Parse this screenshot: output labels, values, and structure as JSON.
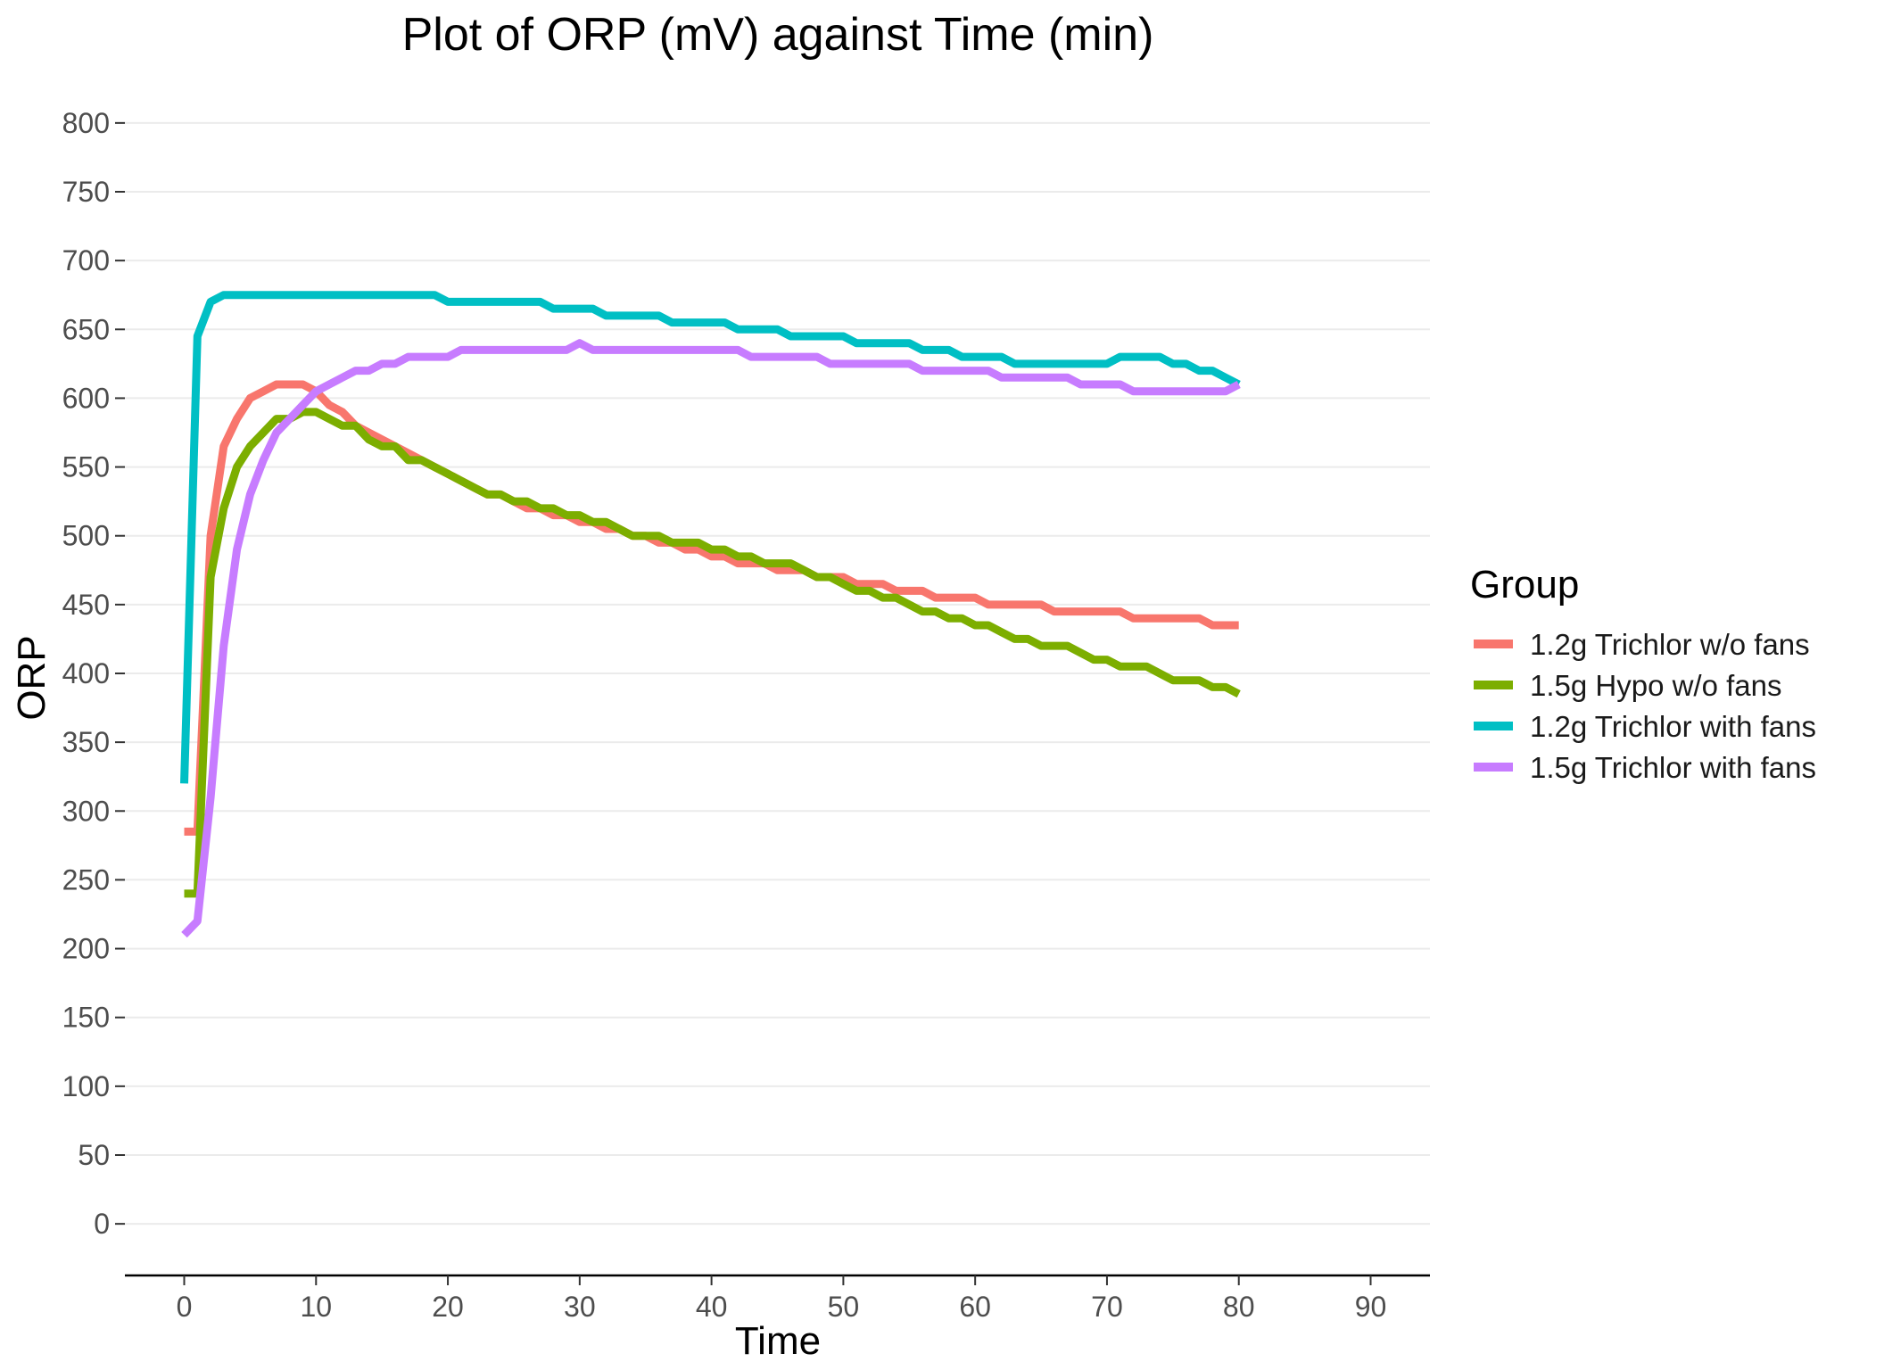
{
  "chart_data": {
    "type": "line",
    "title": "Plot of ORP (mV) against Time (min)",
    "xlabel": "Time",
    "ylabel": "ORP",
    "xlim": [
      -4.5,
      94.5
    ],
    "ylim": [
      -37.5,
      837.5
    ],
    "x_ticks": [
      0,
      10,
      20,
      30,
      40,
      50,
      60,
      70,
      80,
      90
    ],
    "y_ticks": [
      0,
      50,
      100,
      150,
      200,
      250,
      300,
      350,
      400,
      450,
      500,
      550,
      600,
      650,
      700,
      750,
      800
    ],
    "grid": true,
    "legend": {
      "title": "Group",
      "placement": "right"
    },
    "series": [
      {
        "name": "1.2g Trichlor w/o fans",
        "color": "#F8766D",
        "points": [
          [
            0,
            285
          ],
          [
            1,
            285
          ],
          [
            2,
            500
          ],
          [
            3,
            565
          ],
          [
            4,
            585
          ],
          [
            5,
            600
          ],
          [
            6,
            605
          ],
          [
            7,
            610
          ],
          [
            8,
            610
          ],
          [
            9,
            610
          ],
          [
            10,
            605
          ],
          [
            11,
            595
          ],
          [
            12,
            590
          ],
          [
            13,
            580
          ],
          [
            14,
            575
          ],
          [
            15,
            570
          ],
          [
            16,
            565
          ],
          [
            17,
            560
          ],
          [
            18,
            555
          ],
          [
            19,
            550
          ],
          [
            20,
            545
          ],
          [
            21,
            540
          ],
          [
            22,
            535
          ],
          [
            23,
            530
          ],
          [
            24,
            530
          ],
          [
            25,
            525
          ],
          [
            26,
            520
          ],
          [
            27,
            520
          ],
          [
            28,
            515
          ],
          [
            29,
            515
          ],
          [
            30,
            510
          ],
          [
            31,
            510
          ],
          [
            32,
            505
          ],
          [
            33,
            505
          ],
          [
            34,
            500
          ],
          [
            35,
            500
          ],
          [
            36,
            495
          ],
          [
            37,
            495
          ],
          [
            38,
            490
          ],
          [
            39,
            490
          ],
          [
            40,
            485
          ],
          [
            41,
            485
          ],
          [
            42,
            480
          ],
          [
            43,
            480
          ],
          [
            44,
            480
          ],
          [
            45,
            475
          ],
          [
            46,
            475
          ],
          [
            47,
            475
          ],
          [
            48,
            470
          ],
          [
            49,
            470
          ],
          [
            50,
            470
          ],
          [
            51,
            465
          ],
          [
            52,
            465
          ],
          [
            53,
            465
          ],
          [
            54,
            460
          ],
          [
            55,
            460
          ],
          [
            56,
            460
          ],
          [
            57,
            455
          ],
          [
            58,
            455
          ],
          [
            59,
            455
          ],
          [
            60,
            455
          ],
          [
            61,
            450
          ],
          [
            62,
            450
          ],
          [
            63,
            450
          ],
          [
            64,
            450
          ],
          [
            65,
            450
          ],
          [
            66,
            445
          ],
          [
            67,
            445
          ],
          [
            68,
            445
          ],
          [
            69,
            445
          ],
          [
            70,
            445
          ],
          [
            71,
            445
          ],
          [
            72,
            440
          ],
          [
            73,
            440
          ],
          [
            74,
            440
          ],
          [
            75,
            440
          ],
          [
            76,
            440
          ],
          [
            77,
            440
          ],
          [
            78,
            435
          ],
          [
            79,
            435
          ],
          [
            80,
            435
          ]
        ]
      },
      {
        "name": "1.5g Hypo w/o fans",
        "color": "#7CAE00",
        "points": [
          [
            0,
            240
          ],
          [
            1,
            240
          ],
          [
            2,
            470
          ],
          [
            3,
            520
          ],
          [
            4,
            550
          ],
          [
            5,
            565
          ],
          [
            6,
            575
          ],
          [
            7,
            585
          ],
          [
            8,
            585
          ],
          [
            9,
            590
          ],
          [
            10,
            590
          ],
          [
            11,
            585
          ],
          [
            12,
            580
          ],
          [
            13,
            580
          ],
          [
            14,
            570
          ],
          [
            15,
            565
          ],
          [
            16,
            565
          ],
          [
            17,
            555
          ],
          [
            18,
            555
          ],
          [
            19,
            550
          ],
          [
            20,
            545
          ],
          [
            21,
            540
          ],
          [
            22,
            535
          ],
          [
            23,
            530
          ],
          [
            24,
            530
          ],
          [
            25,
            525
          ],
          [
            26,
            525
          ],
          [
            27,
            520
          ],
          [
            28,
            520
          ],
          [
            29,
            515
          ],
          [
            30,
            515
          ],
          [
            31,
            510
          ],
          [
            32,
            510
          ],
          [
            33,
            505
          ],
          [
            34,
            500
          ],
          [
            35,
            500
          ],
          [
            36,
            500
          ],
          [
            37,
            495
          ],
          [
            38,
            495
          ],
          [
            39,
            495
          ],
          [
            40,
            490
          ],
          [
            41,
            490
          ],
          [
            42,
            485
          ],
          [
            43,
            485
          ],
          [
            44,
            480
          ],
          [
            45,
            480
          ],
          [
            46,
            480
          ],
          [
            47,
            475
          ],
          [
            48,
            470
          ],
          [
            49,
            470
          ],
          [
            50,
            465
          ],
          [
            51,
            460
          ],
          [
            52,
            460
          ],
          [
            53,
            455
          ],
          [
            54,
            455
          ],
          [
            55,
            450
          ],
          [
            56,
            445
          ],
          [
            57,
            445
          ],
          [
            58,
            440
          ],
          [
            59,
            440
          ],
          [
            60,
            435
          ],
          [
            61,
            435
          ],
          [
            62,
            430
          ],
          [
            63,
            425
          ],
          [
            64,
            425
          ],
          [
            65,
            420
          ],
          [
            66,
            420
          ],
          [
            67,
            420
          ],
          [
            68,
            415
          ],
          [
            69,
            410
          ],
          [
            70,
            410
          ],
          [
            71,
            405
          ],
          [
            72,
            405
          ],
          [
            73,
            405
          ],
          [
            74,
            400
          ],
          [
            75,
            395
          ],
          [
            76,
            395
          ],
          [
            77,
            395
          ],
          [
            78,
            390
          ],
          [
            79,
            390
          ],
          [
            80,
            385
          ]
        ]
      },
      {
        "name": "1.2g Trichlor with fans",
        "color": "#00BFC4",
        "points": [
          [
            0,
            320
          ],
          [
            1,
            645
          ],
          [
            2,
            670
          ],
          [
            3,
            675
          ],
          [
            4,
            675
          ],
          [
            5,
            675
          ],
          [
            10,
            675
          ],
          [
            15,
            675
          ],
          [
            18,
            675
          ],
          [
            19,
            675
          ],
          [
            20,
            670
          ],
          [
            21,
            670
          ],
          [
            25,
            670
          ],
          [
            27,
            670
          ],
          [
            28,
            665
          ],
          [
            29,
            665
          ],
          [
            30,
            665
          ],
          [
            31,
            665
          ],
          [
            32,
            660
          ],
          [
            33,
            660
          ],
          [
            34,
            660
          ],
          [
            35,
            660
          ],
          [
            36,
            660
          ],
          [
            37,
            655
          ],
          [
            38,
            655
          ],
          [
            39,
            655
          ],
          [
            40,
            655
          ],
          [
            41,
            655
          ],
          [
            42,
            650
          ],
          [
            43,
            650
          ],
          [
            44,
            650
          ],
          [
            45,
            650
          ],
          [
            46,
            645
          ],
          [
            47,
            645
          ],
          [
            48,
            645
          ],
          [
            49,
            645
          ],
          [
            50,
            645
          ],
          [
            51,
            640
          ],
          [
            52,
            640
          ],
          [
            53,
            640
          ],
          [
            54,
            640
          ],
          [
            55,
            640
          ],
          [
            56,
            635
          ],
          [
            57,
            635
          ],
          [
            58,
            635
          ],
          [
            59,
            630
          ],
          [
            60,
            630
          ],
          [
            61,
            630
          ],
          [
            62,
            630
          ],
          [
            63,
            625
          ],
          [
            64,
            625
          ],
          [
            65,
            625
          ],
          [
            66,
            625
          ],
          [
            67,
            625
          ],
          [
            68,
            625
          ],
          [
            69,
            625
          ],
          [
            70,
            625
          ],
          [
            71,
            630
          ],
          [
            72,
            630
          ],
          [
            73,
            630
          ],
          [
            74,
            630
          ],
          [
            75,
            625
          ],
          [
            76,
            625
          ],
          [
            77,
            620
          ],
          [
            78,
            620
          ],
          [
            79,
            615
          ],
          [
            80,
            610
          ]
        ]
      },
      {
        "name": "1.5g Trichlor with fans",
        "color": "#C77CFF",
        "points": [
          [
            0,
            210
          ],
          [
            1,
            220
          ],
          [
            2,
            310
          ],
          [
            3,
            420
          ],
          [
            4,
            490
          ],
          [
            5,
            530
          ],
          [
            6,
            555
          ],
          [
            7,
            575
          ],
          [
            8,
            585
          ],
          [
            9,
            595
          ],
          [
            10,
            605
          ],
          [
            11,
            610
          ],
          [
            12,
            615
          ],
          [
            13,
            620
          ],
          [
            14,
            620
          ],
          [
            15,
            625
          ],
          [
            16,
            625
          ],
          [
            17,
            630
          ],
          [
            18,
            630
          ],
          [
            19,
            630
          ],
          [
            20,
            630
          ],
          [
            21,
            635
          ],
          [
            22,
            635
          ],
          [
            25,
            635
          ],
          [
            28,
            635
          ],
          [
            29,
            635
          ],
          [
            30,
            640
          ],
          [
            31,
            635
          ],
          [
            32,
            635
          ],
          [
            35,
            635
          ],
          [
            40,
            635
          ],
          [
            41,
            635
          ],
          [
            42,
            635
          ],
          [
            43,
            630
          ],
          [
            44,
            630
          ],
          [
            45,
            630
          ],
          [
            46,
            630
          ],
          [
            47,
            630
          ],
          [
            48,
            630
          ],
          [
            49,
            625
          ],
          [
            50,
            625
          ],
          [
            51,
            625
          ],
          [
            52,
            625
          ],
          [
            53,
            625
          ],
          [
            54,
            625
          ],
          [
            55,
            625
          ],
          [
            56,
            620
          ],
          [
            57,
            620
          ],
          [
            58,
            620
          ],
          [
            59,
            620
          ],
          [
            60,
            620
          ],
          [
            61,
            620
          ],
          [
            62,
            615
          ],
          [
            63,
            615
          ],
          [
            64,
            615
          ],
          [
            65,
            615
          ],
          [
            66,
            615
          ],
          [
            67,
            615
          ],
          [
            68,
            610
          ],
          [
            69,
            610
          ],
          [
            70,
            610
          ],
          [
            71,
            610
          ],
          [
            72,
            605
          ],
          [
            73,
            605
          ],
          [
            74,
            605
          ],
          [
            75,
            605
          ],
          [
            76,
            605
          ],
          [
            77,
            605
          ],
          [
            78,
            605
          ],
          [
            79,
            605
          ],
          [
            80,
            610
          ]
        ]
      }
    ]
  }
}
